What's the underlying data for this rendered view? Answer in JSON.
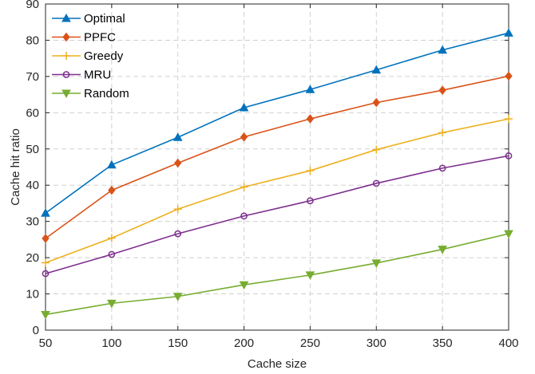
{
  "chart_data": {
    "type": "line",
    "xlabel": "Cache size",
    "ylabel": "Cache hit ratio",
    "x": [
      50,
      100,
      150,
      200,
      250,
      300,
      350,
      400
    ],
    "xlim": [
      50,
      400
    ],
    "ylim": [
      0,
      90
    ],
    "xticks": [
      50,
      100,
      150,
      200,
      250,
      300,
      350,
      400
    ],
    "yticks": [
      0,
      10,
      20,
      30,
      40,
      50,
      60,
      70,
      80,
      90
    ],
    "grid": true,
    "legend_position": "top-left",
    "series": [
      {
        "name": "Optimal",
        "color": "#0072BD",
        "marker": "triangle-up",
        "values": [
          32.3,
          45.6,
          53.2,
          61.4,
          66.4,
          71.8,
          77.3,
          82.0
        ]
      },
      {
        "name": "PPFC",
        "color": "#D95319",
        "marker": "diamond",
        "values": [
          25.3,
          38.6,
          46.1,
          53.3,
          58.3,
          62.8,
          66.2,
          70.1
        ]
      },
      {
        "name": "Greedy",
        "color": "#EDB120",
        "marker": "plus",
        "values": [
          18.6,
          25.4,
          33.4,
          39.5,
          44.0,
          49.8,
          54.5,
          58.3
        ]
      },
      {
        "name": "MRU",
        "color": "#7E2F8E",
        "marker": "circle",
        "values": [
          15.6,
          20.9,
          26.6,
          31.5,
          35.7,
          40.5,
          44.7,
          48.1
        ]
      },
      {
        "name": "Random",
        "color": "#77AC30",
        "marker": "triangle-down",
        "values": [
          4.3,
          7.4,
          9.3,
          12.5,
          15.2,
          18.5,
          22.3,
          26.6
        ]
      }
    ]
  }
}
